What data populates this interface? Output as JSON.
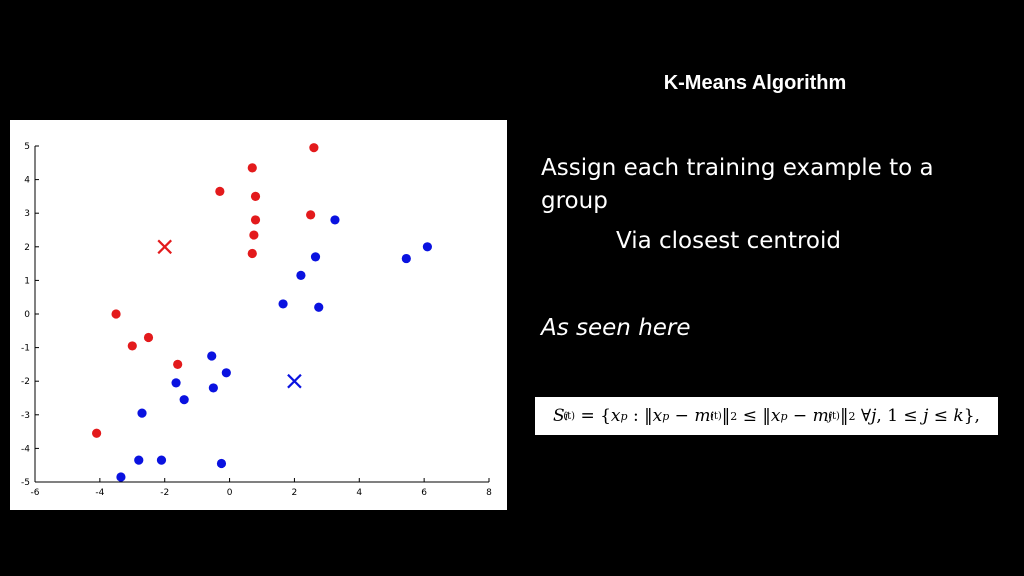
{
  "slide": {
    "title": "K-Means Algorithm",
    "bullet_1": "Assign each training example to a group",
    "bullet_2": "Via closest centroid",
    "bullet_3": "As seen here",
    "formula": "S_i^(t) = {x_p : ||x_p − m_i^(t)||^2 ≤ ||x_p − m_j^(t)||^2 ∀j, 1 ≤ j ≤ k},",
    "background_color": "#000000"
  },
  "chart_data": {
    "type": "scatter",
    "xlim": [
      -6,
      8
    ],
    "ylim": [
      -5,
      5
    ],
    "xticks": [
      -6,
      -4,
      -2,
      0,
      2,
      4,
      6,
      8
    ],
    "yticks": [
      -5,
      -4,
      -3,
      -2,
      -1,
      0,
      1,
      2,
      3,
      4,
      5
    ],
    "grid": false,
    "series": [
      {
        "color": "#e31a1c",
        "marker": "circle",
        "points": [
          [
            -4.1,
            -3.55
          ],
          [
            -3.5,
            0
          ],
          [
            -3,
            -0.95
          ],
          [
            -2.5,
            -0.7
          ],
          [
            -1.6,
            -1.5
          ],
          [
            -0.3,
            3.65
          ],
          [
            0.7,
            4.35
          ],
          [
            0.8,
            3.5
          ],
          [
            0.8,
            2.8
          ],
          [
            0.75,
            2.35
          ],
          [
            0.7,
            1.8
          ],
          [
            2.5,
            2.95
          ],
          [
            2.6,
            4.95
          ]
        ]
      },
      {
        "color": "#0a12e0",
        "marker": "circle",
        "points": [
          [
            -3.35,
            -4.85
          ],
          [
            -2.8,
            -4.35
          ],
          [
            -2.7,
            -2.95
          ],
          [
            -2.1,
            -4.35
          ],
          [
            -1.65,
            -2.05
          ],
          [
            -1.4,
            -2.55
          ],
          [
            -0.55,
            -1.25
          ],
          [
            -0.5,
            -2.2
          ],
          [
            -0.1,
            -1.75
          ],
          [
            -0.25,
            -4.45
          ],
          [
            1.65,
            0.3
          ],
          [
            2.2,
            1.15
          ],
          [
            2.65,
            1.7
          ],
          [
            2.75,
            0.2
          ],
          [
            3.25,
            2.8
          ],
          [
            5.45,
            1.65
          ],
          [
            6.1,
            2.0
          ]
        ]
      },
      {
        "color": "#e31a1c",
        "marker": "x",
        "points": [
          [
            -2,
            2
          ]
        ]
      },
      {
        "color": "#0a12e0",
        "marker": "x",
        "points": [
          [
            2,
            -2
          ]
        ]
      }
    ]
  }
}
